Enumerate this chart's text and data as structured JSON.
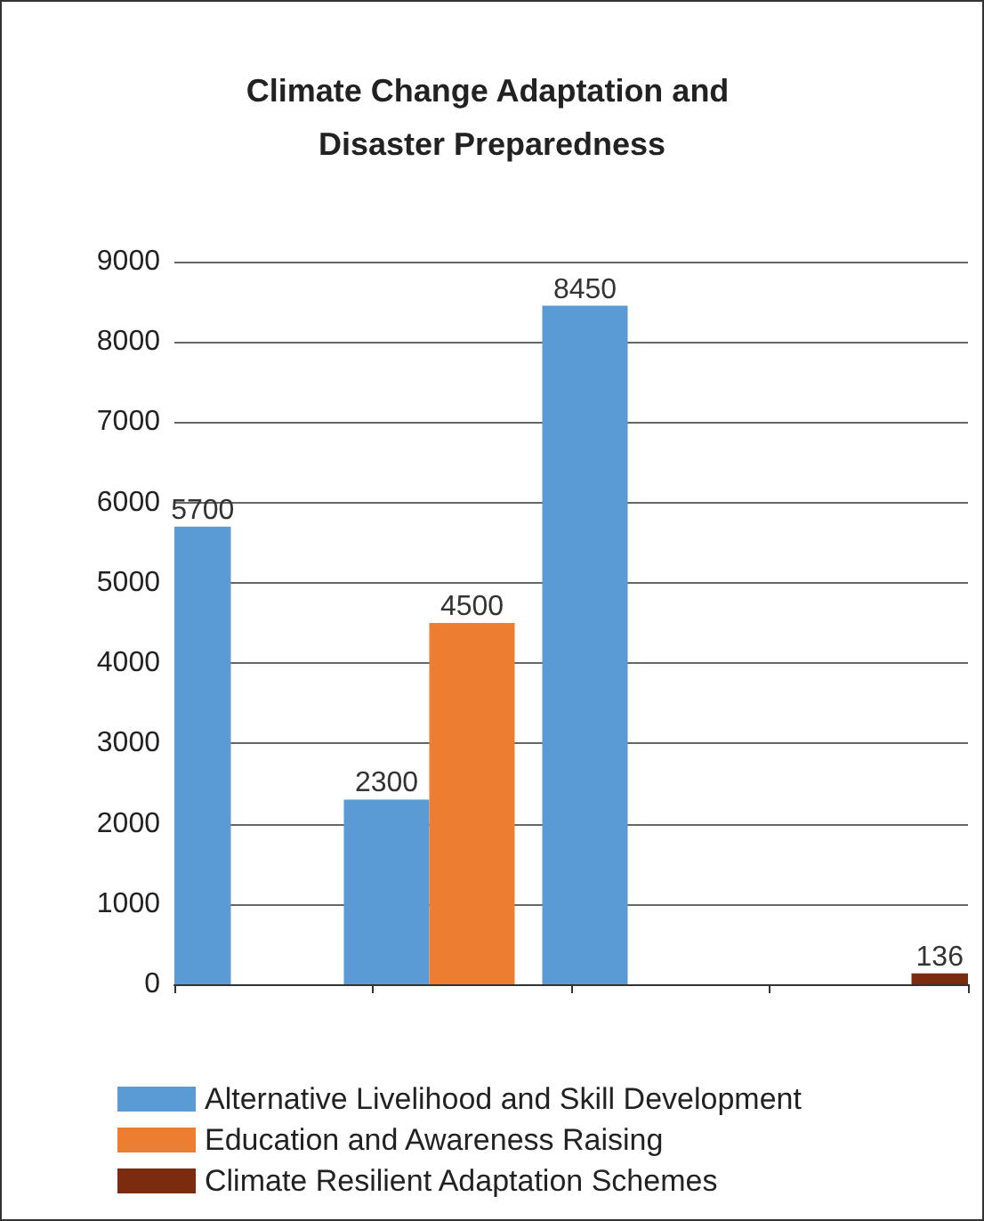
{
  "chart_data": {
    "type": "bar",
    "title": "Climate Change Adaptation and Disaster Preparedness",
    "categories": [
      null,
      null,
      null,
      null
    ],
    "series": [
      {
        "name": "Alternative Livelihood and Skill Development",
        "color": "#5b9bd5",
        "values": [
          5700,
          2300,
          8450,
          null
        ]
      },
      {
        "name": "Education and Awareness Raising",
        "color": "#ed7d31",
        "values": [
          null,
          4500,
          null,
          null
        ]
      },
      {
        "name": "Climate Resilient Adaptation Schemes",
        "color": "#7b2c0f",
        "values": [
          null,
          null,
          null,
          136
        ]
      }
    ],
    "ylim": [
      0,
      9000
    ],
    "yticks": [
      0,
      1000,
      2000,
      3000,
      4000,
      5000,
      6000,
      7000,
      8000,
      9000
    ],
    "grid": "y",
    "legend": "bottom",
    "data_labels": true
  }
}
